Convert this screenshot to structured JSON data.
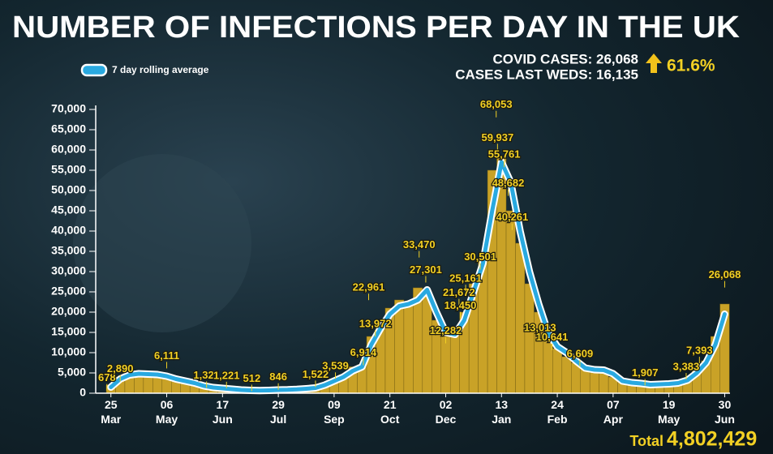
{
  "chart_data": {
    "type": "bar",
    "title": "NUMBER OF INFECTIONS PER DAY IN THE UK",
    "stats": {
      "cases": "COVID CASES: 26,068",
      "last_weds": "CASES LAST WEDS: 16,135",
      "change": "61.6%",
      "total_label": "Total",
      "total": "4,802,429"
    },
    "x": [
      0,
      7,
      14,
      21,
      28,
      35,
      42,
      49,
      56,
      63,
      70,
      77,
      84,
      91,
      98,
      105,
      112,
      119,
      126,
      133,
      140,
      147,
      154,
      161,
      168,
      175,
      182,
      189,
      196,
      203,
      210,
      217,
      224,
      231,
      238,
      245,
      252,
      259,
      266,
      273,
      280,
      287,
      294,
      301,
      308,
      315,
      322,
      329,
      336,
      343,
      350,
      357,
      364,
      371,
      378,
      385,
      392,
      399,
      406,
      413,
      420,
      427,
      434,
      441,
      448,
      455,
      462
    ],
    "series": [
      {
        "color": "#c9a227",
        "values": [
          2000,
          4000,
          5000,
          5000,
          4500,
          5000,
          4500,
          3500,
          3000,
          2500,
          1500,
          1300,
          1200,
          900,
          700,
          600,
          700,
          800,
          850,
          900,
          1000,
          1200,
          1500,
          2500,
          3500,
          4500,
          6500,
          7000,
          14000,
          17000,
          21000,
          23000,
          22000,
          26000,
          24000,
          18000,
          14000,
          15000,
          20000,
          27000,
          33000,
          55000,
          58000,
          45000,
          37000,
          27000,
          20000,
          13000,
          11000,
          9000,
          7500,
          6000,
          5500,
          6000,
          4000,
          2800,
          2500,
          2200,
          2000,
          2300,
          2200,
          2700,
          3500,
          5500,
          8000,
          14000,
          22000
        ]
      },
      {
        "name": "7 day rolling average",
        "color": "#29a9e0",
        "values": [
          1500,
          3500,
          4500,
          4800,
          4700,
          4600,
          4200,
          3500,
          3000,
          2500,
          1800,
          1400,
          1200,
          1000,
          800,
          700,
          650,
          700,
          800,
          850,
          950,
          1100,
          1300,
          2000,
          3000,
          4000,
          5500,
          6500,
          12000,
          16000,
          19500,
          21500,
          22000,
          23000,
          25500,
          20000,
          15000,
          14500,
          18000,
          25000,
          32000,
          45000,
          57000,
          52000,
          40000,
          30000,
          22000,
          15000,
          11500,
          10000,
          8000,
          6200,
          5800,
          5700,
          4800,
          3000,
          2600,
          2400,
          2100,
          2200,
          2300,
          2500,
          3200,
          5000,
          7500,
          12000,
          19500
        ]
      }
    ],
    "annotations": [
      {
        "x": -3,
        "value": 678,
        "label": "678"
      },
      {
        "x": 7,
        "value": 2890,
        "label": "2,890"
      },
      {
        "x": 42,
        "value": 6111,
        "label": "6,111"
      },
      {
        "x": 72,
        "value": 1321,
        "label": "1,321"
      },
      {
        "x": 87,
        "value": 1221,
        "label": "1,221"
      },
      {
        "x": 106,
        "value": 512,
        "label": "512"
      },
      {
        "x": 126,
        "value": 846,
        "label": "846"
      },
      {
        "x": 154,
        "value": 1522,
        "label": "1,522"
      },
      {
        "x": 169,
        "value": 3539,
        "label": "3,539"
      },
      {
        "x": 190,
        "value": 6914,
        "label": "6,914"
      },
      {
        "x": 199,
        "value": 13972,
        "label": "13,972"
      },
      {
        "x": 194,
        "value": 22961,
        "label": "22,961"
      },
      {
        "x": 232,
        "value": 33470,
        "label": "33,470"
      },
      {
        "x": 237,
        "value": 27301,
        "label": "27,301"
      },
      {
        "x": 252,
        "value": 12282,
        "label": "12,282"
      },
      {
        "x": 262,
        "value": 21672,
        "label": "21,672"
      },
      {
        "x": 263,
        "value": 18450,
        "label": "18,450"
      },
      {
        "x": 267,
        "value": 25161,
        "label": "25,161"
      },
      {
        "x": 278,
        "value": 30501,
        "label": "30,501"
      },
      {
        "x": 290,
        "value": 68053,
        "label": "68,053"
      },
      {
        "x": 291,
        "value": 59937,
        "label": "59,937"
      },
      {
        "x": 296,
        "value": 55761,
        "label": "55,761"
      },
      {
        "x": 299,
        "value": 48682,
        "label": "48,682"
      },
      {
        "x": 302,
        "value": 40261,
        "label": "40,261"
      },
      {
        "x": 323,
        "value": 13013,
        "label": "13,013"
      },
      {
        "x": 332,
        "value": 10641,
        "label": "10,641"
      },
      {
        "x": 353,
        "value": 6609,
        "label": "6,609"
      },
      {
        "x": 402,
        "value": 1907,
        "label": "1,907"
      },
      {
        "x": 433,
        "value": 3383,
        "label": "3,383"
      },
      {
        "x": 443,
        "value": 7393,
        "label": "7,393"
      },
      {
        "x": 462,
        "value": 26068,
        "label": "26,068"
      }
    ],
    "xlim": [
      -9,
      466
    ],
    "xticks": [
      {
        "value": 0,
        "label": "25 Mar"
      },
      {
        "value": 42,
        "label": "06 May"
      },
      {
        "value": 84,
        "label": "17 Jun"
      },
      {
        "value": 126,
        "label": "29 Jul"
      },
      {
        "value": 168,
        "label": "09 Sep"
      },
      {
        "value": 210,
        "label": "21 Oct"
      },
      {
        "value": 252,
        "label": "02 Dec"
      },
      {
        "value": 294,
        "label": "13 Jan"
      },
      {
        "value": 336,
        "label": "24 Feb"
      },
      {
        "value": 378,
        "label": "07 Apr"
      },
      {
        "value": 420,
        "label": "19 May"
      },
      {
        "value": 462,
        "label": "30 Jun"
      }
    ],
    "ylim": [
      0,
      70000
    ],
    "yticks": [
      0,
      {
        "value": 5000,
        "label": "5,000"
      },
      {
        "value": 10000,
        "label": "10,000"
      },
      {
        "value": 15000,
        "label": "15,000"
      },
      {
        "value": 20000,
        "label": "20,000"
      },
      {
        "value": 25000,
        "label": "25,000"
      },
      {
        "value": 30000,
        "label": "30,000"
      },
      {
        "value": 35000,
        "label": "35,000"
      },
      {
        "value": 40000,
        "label": "40,000"
      },
      {
        "value": 45000,
        "label": "45,000"
      },
      {
        "value": 50000,
        "label": "50,000"
      },
      {
        "value": 55000,
        "label": "55,000"
      },
      {
        "value": 60000,
        "label": "60,000"
      },
      {
        "value": 65000,
        "label": "65,000"
      },
      {
        "value": 70000,
        "label": "70,000"
      }
    ]
  }
}
